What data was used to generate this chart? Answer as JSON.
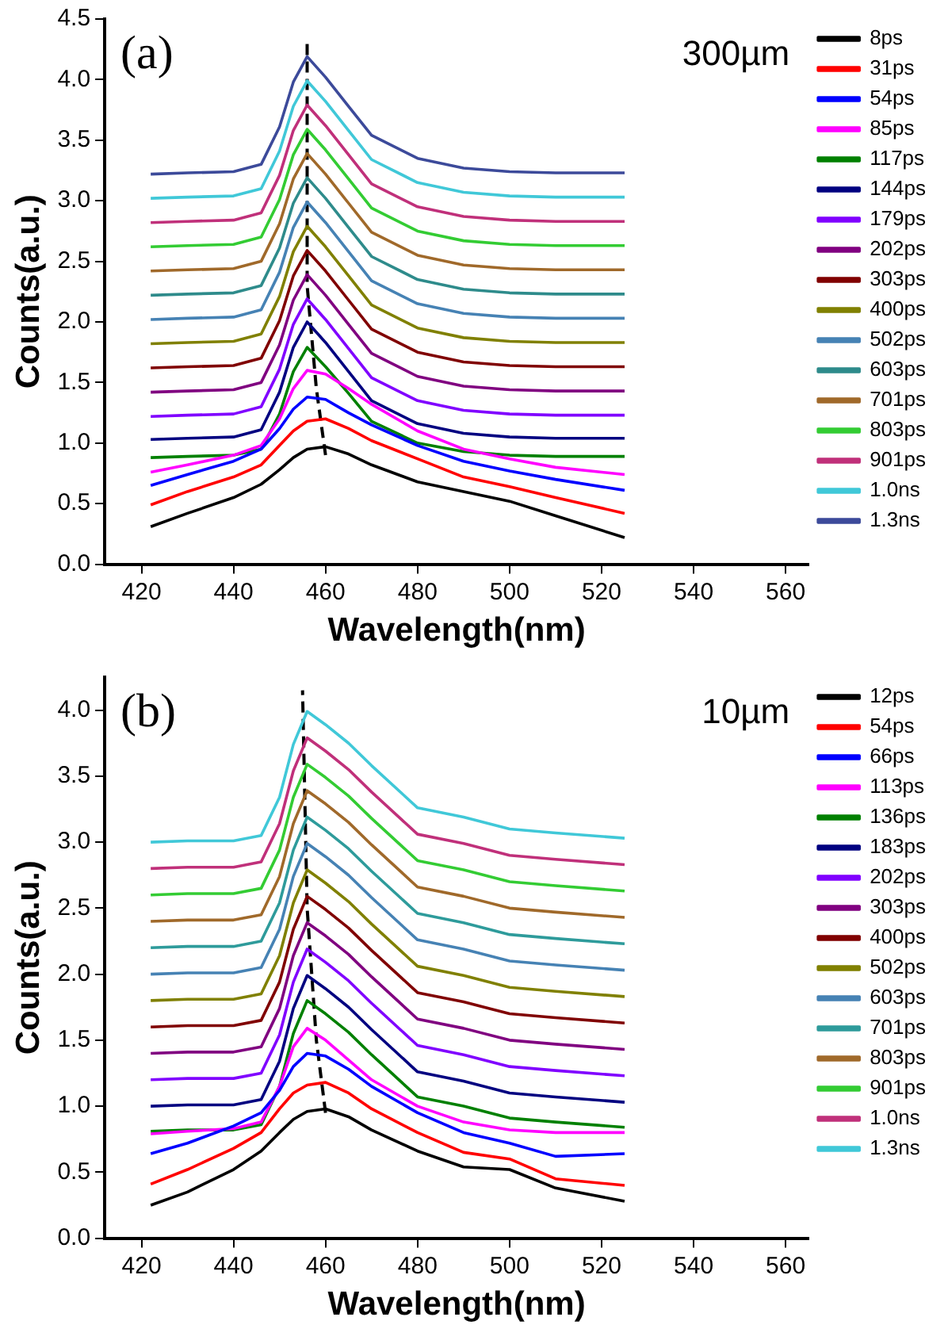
{
  "chart_data": [
    {
      "type": "line",
      "xlabel": "Wavelength(nm)",
      "ylabel": "Counts(a.u.)",
      "annotations": [
        "(a)",
        "300µm"
      ],
      "legend": "right",
      "xlim": [
        412,
        565
      ],
      "xticks": [
        420,
        440,
        460,
        480,
        500,
        520,
        540,
        560
      ],
      "ylim": [
        0,
        4.5
      ],
      "yticks": [
        {
          "value": 0,
          "label": "0.0"
        },
        {
          "value": 0.5,
          "label": "0.5"
        },
        {
          "value": 1,
          "label": "1.0"
        },
        {
          "value": 1.5,
          "label": "1.5"
        },
        {
          "value": 2,
          "label": "2.0"
        },
        {
          "value": 2.5,
          "label": "2.5"
        },
        {
          "value": 3,
          "label": "3.0"
        },
        {
          "value": 3.5,
          "label": "3.5"
        },
        {
          "value": 4,
          "label": "4.0"
        },
        {
          "value": 4.5,
          "label": "4.5"
        }
      ],
      "x": [
        422,
        430,
        440,
        446,
        450,
        453,
        456,
        460,
        465,
        470,
        480,
        490,
        500,
        510,
        525
      ],
      "series": [
        {
          "name": "8ps",
          "color": "#000000",
          "values": [
            0.31,
            0.42,
            0.55,
            0.66,
            0.78,
            0.88,
            0.95,
            0.97,
            0.91,
            0.82,
            0.68,
            0.6,
            0.52,
            0.4,
            0.22
          ]
        },
        {
          "name": "31ps",
          "color": "#ff0000",
          "values": [
            0.49,
            0.6,
            0.72,
            0.82,
            0.98,
            1.1,
            1.18,
            1.2,
            1.12,
            1.02,
            0.87,
            0.72,
            0.64,
            0.55,
            0.42
          ]
        },
        {
          "name": "54ps",
          "color": "#0000ff",
          "values": [
            0.65,
            0.74,
            0.85,
            0.95,
            1.12,
            1.28,
            1.38,
            1.36,
            1.25,
            1.15,
            0.98,
            0.85,
            0.77,
            0.7,
            0.61
          ]
        },
        {
          "name": "85ps",
          "color": "#ff00ff",
          "values": [
            0.76,
            0.82,
            0.9,
            0.98,
            1.2,
            1.45,
            1.6,
            1.57,
            1.45,
            1.32,
            1.1,
            0.95,
            0.87,
            0.8,
            0.74
          ]
        },
        {
          "name": "117ps",
          "color": "#008000",
          "values": [
            0.88,
            0.89,
            0.9,
            0.95,
            1.24,
            1.59,
            1.79,
            1.63,
            1.41,
            1.18,
            1.0,
            0.93,
            0.9,
            0.89,
            0.89
          ]
        },
        {
          "name": "144ps",
          "color": "#000080",
          "values": [
            1.03,
            1.04,
            1.05,
            1.11,
            1.42,
            1.79,
            2.0,
            1.83,
            1.59,
            1.35,
            1.16,
            1.08,
            1.05,
            1.04,
            1.04
          ]
        },
        {
          "name": "179ps",
          "color": "#8000ff",
          "values": [
            1.22,
            1.23,
            1.24,
            1.3,
            1.61,
            1.98,
            2.19,
            2.02,
            1.78,
            1.54,
            1.35,
            1.27,
            1.24,
            1.23,
            1.23
          ]
        },
        {
          "name": "202ps",
          "color": "#800080",
          "values": [
            1.42,
            1.43,
            1.44,
            1.5,
            1.81,
            2.18,
            2.39,
            2.22,
            1.98,
            1.74,
            1.55,
            1.47,
            1.44,
            1.43,
            1.43
          ]
        },
        {
          "name": "303ps",
          "color": "#800000",
          "values": [
            1.62,
            1.63,
            1.64,
            1.7,
            2.01,
            2.38,
            2.59,
            2.42,
            2.18,
            1.94,
            1.75,
            1.67,
            1.64,
            1.63,
            1.63
          ]
        },
        {
          "name": "400ps",
          "color": "#808000",
          "values": [
            1.82,
            1.83,
            1.84,
            1.9,
            2.21,
            2.58,
            2.79,
            2.62,
            2.38,
            2.14,
            1.95,
            1.87,
            1.84,
            1.83,
            1.83
          ]
        },
        {
          "name": "502ps",
          "color": "#4682b4",
          "values": [
            2.02,
            2.03,
            2.04,
            2.1,
            2.41,
            2.78,
            2.99,
            2.82,
            2.58,
            2.34,
            2.15,
            2.07,
            2.04,
            2.03,
            2.03
          ]
        },
        {
          "name": "603ps",
          "color": "#2e8b8b",
          "values": [
            2.22,
            2.23,
            2.24,
            2.3,
            2.61,
            2.98,
            3.19,
            3.02,
            2.78,
            2.54,
            2.35,
            2.27,
            2.24,
            2.23,
            2.23
          ]
        },
        {
          "name": "701ps",
          "color": "#a0692a",
          "values": [
            2.42,
            2.43,
            2.44,
            2.5,
            2.81,
            3.18,
            3.39,
            3.22,
            2.98,
            2.74,
            2.55,
            2.47,
            2.44,
            2.43,
            2.43
          ]
        },
        {
          "name": "803ps",
          "color": "#33cc33",
          "values": [
            2.62,
            2.63,
            2.64,
            2.7,
            3.01,
            3.38,
            3.59,
            3.42,
            3.18,
            2.94,
            2.75,
            2.67,
            2.64,
            2.63,
            2.63
          ]
        },
        {
          "name": "901ps",
          "color": "#c0307a",
          "values": [
            2.82,
            2.83,
            2.84,
            2.9,
            3.21,
            3.58,
            3.79,
            3.62,
            3.38,
            3.14,
            2.95,
            2.87,
            2.84,
            2.83,
            2.83
          ]
        },
        {
          "name": "1.0ns",
          "color": "#40c8d8",
          "values": [
            3.02,
            3.03,
            3.04,
            3.1,
            3.41,
            3.78,
            3.99,
            3.82,
            3.58,
            3.34,
            3.15,
            3.07,
            3.04,
            3.03,
            3.03
          ]
        },
        {
          "name": "1.3ns",
          "color": "#3c4a9a",
          "values": [
            3.22,
            3.23,
            3.24,
            3.3,
            3.61,
            3.98,
            4.19,
            4.02,
            3.78,
            3.54,
            3.35,
            3.27,
            3.24,
            3.23,
            3.23
          ]
        },
        {
          "type": "line",
          "color": "#000000",
          "line_style": "dashed",
          "x": [
            460,
            458,
            456,
            456
          ],
          "values": [
            0.9,
            1.45,
            2.3,
            4.3
          ]
        }
      ]
    },
    {
      "type": "line",
      "xlabel": "Wavelength(nm)",
      "ylabel": "Counts(a.u.)",
      "annotations": [
        "(b)",
        "10µm"
      ],
      "legend": "right",
      "xlim": [
        412,
        565
      ],
      "xticks": [
        420,
        440,
        460,
        480,
        500,
        520,
        540,
        560
      ],
      "ylim": [
        0,
        4.25
      ],
      "yticks": [
        {
          "value": 0,
          "label": "0.0"
        },
        {
          "value": 0.5,
          "label": "0.5"
        },
        {
          "value": 1,
          "label": "1.0"
        },
        {
          "value": 1.5,
          "label": "1.5"
        },
        {
          "value": 2,
          "label": "2.0"
        },
        {
          "value": 2.5,
          "label": "2.5"
        },
        {
          "value": 3,
          "label": "3.0"
        },
        {
          "value": 3.5,
          "label": "3.5"
        },
        {
          "value": 4,
          "label": "4.0"
        }
      ],
      "x": [
        422,
        430,
        440,
        446,
        450,
        453,
        456,
        460,
        465,
        470,
        480,
        490,
        500,
        510,
        525
      ],
      "series": [
        {
          "name": "12ps",
          "color": "#000000",
          "values": [
            0.25,
            0.35,
            0.52,
            0.66,
            0.8,
            0.9,
            0.96,
            0.98,
            0.92,
            0.82,
            0.66,
            0.54,
            0.52,
            0.38,
            0.28
          ]
        },
        {
          "name": "54ps",
          "color": "#ff0000",
          "values": [
            0.41,
            0.52,
            0.68,
            0.8,
            0.98,
            1.1,
            1.16,
            1.18,
            1.1,
            0.98,
            0.8,
            0.65,
            0.6,
            0.45,
            0.4
          ]
        },
        {
          "name": "66ps",
          "color": "#0000ff",
          "values": [
            0.64,
            0.72,
            0.85,
            0.95,
            1.12,
            1.3,
            1.4,
            1.38,
            1.28,
            1.15,
            0.95,
            0.8,
            0.72,
            0.62,
            0.64
          ]
        },
        {
          "name": "113ps",
          "color": "#ff00ff",
          "values": [
            0.79,
            0.81,
            0.83,
            0.88,
            1.15,
            1.45,
            1.59,
            1.5,
            1.35,
            1.2,
            1.0,
            0.88,
            0.82,
            0.8,
            0.8
          ]
        },
        {
          "name": "136ps",
          "color": "#008000",
          "values": [
            0.81,
            0.82,
            0.82,
            0.86,
            1.15,
            1.55,
            1.8,
            1.7,
            1.56,
            1.39,
            1.07,
            1.0,
            0.91,
            0.88,
            0.84
          ]
        },
        {
          "name": "183ps",
          "color": "#000080",
          "values": [
            1.0,
            1.01,
            1.01,
            1.05,
            1.34,
            1.74,
            1.99,
            1.89,
            1.75,
            1.58,
            1.26,
            1.19,
            1.1,
            1.07,
            1.03
          ]
        },
        {
          "name": "202ps",
          "color": "#8000ff",
          "values": [
            1.2,
            1.21,
            1.21,
            1.25,
            1.54,
            1.94,
            2.19,
            2.09,
            1.95,
            1.78,
            1.46,
            1.39,
            1.3,
            1.27,
            1.23
          ]
        },
        {
          "name": "303ps",
          "color": "#800080",
          "values": [
            1.4,
            1.41,
            1.41,
            1.45,
            1.74,
            2.14,
            2.39,
            2.29,
            2.15,
            1.98,
            1.66,
            1.59,
            1.5,
            1.47,
            1.43
          ]
        },
        {
          "name": "400ps",
          "color": "#800000",
          "values": [
            1.6,
            1.61,
            1.61,
            1.65,
            1.94,
            2.34,
            2.59,
            2.49,
            2.35,
            2.18,
            1.86,
            1.79,
            1.7,
            1.67,
            1.63
          ]
        },
        {
          "name": "502ps",
          "color": "#808000",
          "values": [
            1.8,
            1.81,
            1.81,
            1.85,
            2.14,
            2.54,
            2.79,
            2.69,
            2.55,
            2.38,
            2.06,
            1.99,
            1.9,
            1.87,
            1.83
          ]
        },
        {
          "name": "603ps",
          "color": "#4682b4",
          "values": [
            2.0,
            2.01,
            2.01,
            2.05,
            2.34,
            2.74,
            2.99,
            2.89,
            2.75,
            2.58,
            2.26,
            2.19,
            2.1,
            2.07,
            2.03
          ]
        },
        {
          "name": "701ps",
          "color": "#2e9b9b",
          "values": [
            2.2,
            2.21,
            2.21,
            2.25,
            2.54,
            2.94,
            3.19,
            3.09,
            2.95,
            2.78,
            2.46,
            2.39,
            2.3,
            2.27,
            2.23
          ]
        },
        {
          "name": "803ps",
          "color": "#a0692a",
          "values": [
            2.4,
            2.41,
            2.41,
            2.45,
            2.74,
            3.14,
            3.39,
            3.29,
            3.15,
            2.98,
            2.66,
            2.59,
            2.5,
            2.47,
            2.43
          ]
        },
        {
          "name": "901ps",
          "color": "#33cc33",
          "values": [
            2.6,
            2.61,
            2.61,
            2.65,
            2.94,
            3.34,
            3.59,
            3.49,
            3.35,
            3.18,
            2.86,
            2.79,
            2.7,
            2.67,
            2.63
          ]
        },
        {
          "name": "1.0ns",
          "color": "#c0307a",
          "values": [
            2.8,
            2.81,
            2.81,
            2.85,
            3.14,
            3.54,
            3.79,
            3.69,
            3.55,
            3.38,
            3.06,
            2.99,
            2.9,
            2.87,
            2.83
          ]
        },
        {
          "name": "1.3ns",
          "color": "#40c8d8",
          "values": [
            3.0,
            3.01,
            3.01,
            3.05,
            3.34,
            3.74,
            3.99,
            3.89,
            3.75,
            3.58,
            3.26,
            3.19,
            3.1,
            3.07,
            3.03
          ]
        },
        {
          "type": "line",
          "color": "#000000",
          "line_style": "dashed",
          "x": [
            460,
            458,
            456,
            455
          ],
          "values": [
            0.95,
            1.5,
            2.5,
            4.15
          ]
        }
      ]
    }
  ]
}
